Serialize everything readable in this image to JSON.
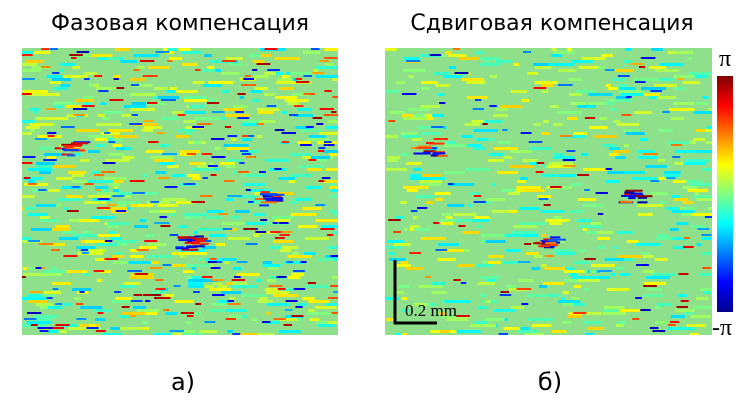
{
  "panels": [
    {
      "title": "Фазовая компенсация",
      "label": "а)"
    },
    {
      "title": "Сдвиговая компенсация",
      "label": "б)"
    }
  ],
  "colorbar": {
    "max_label": "π",
    "min_label": "-π"
  },
  "scale_bar": {
    "label": "0.2 mm"
  }
}
